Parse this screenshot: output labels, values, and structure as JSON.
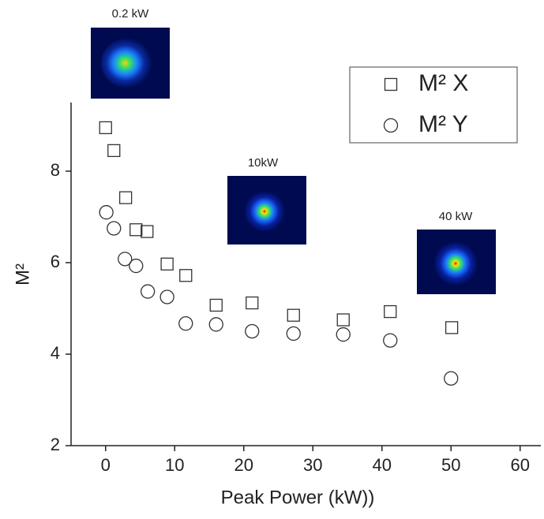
{
  "chart_data": {
    "type": "scatter",
    "x_label": "Peak Power (kW))",
    "y_label": "M²",
    "xlim": [
      -5,
      63
    ],
    "ylim": [
      2,
      9.5
    ],
    "xticks": [
      0,
      10,
      20,
      30,
      40,
      50,
      60
    ],
    "yticks": [
      2,
      4,
      6,
      8
    ],
    "legend": "top-right",
    "series": [
      {
        "name": "M² X",
        "marker": "square",
        "color": "#333333",
        "x": [
          0,
          1.2,
          2.9,
          4.4,
          6,
          8.9,
          11.6,
          16,
          21.2,
          27.2,
          34.4,
          41.2,
          50.1
        ],
        "values": [
          8.95,
          8.45,
          7.42,
          6.72,
          6.68,
          5.97,
          5.72,
          5.07,
          5.12,
          4.85,
          4.75,
          4.93,
          4.58
        ]
      },
      {
        "name": "M² Y",
        "marker": "circle",
        "color": "#333333",
        "x": [
          0.1,
          1.2,
          2.8,
          4.4,
          6.1,
          8.9,
          11.6,
          16,
          21.2,
          27.2,
          34.4,
          41.2,
          50
        ],
        "values": [
          7.1,
          6.75,
          6.08,
          5.93,
          5.37,
          5.25,
          4.67,
          4.65,
          4.5,
          4.45,
          4.43,
          4.3,
          3.47
        ]
      }
    ],
    "annotations": [
      "0.2 kW",
      "10kW",
      "40 kW"
    ]
  }
}
